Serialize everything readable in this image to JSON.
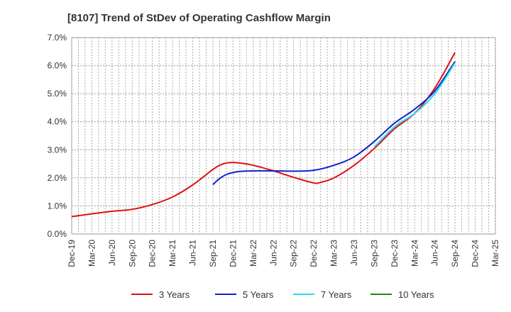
{
  "chart_data": {
    "type": "line",
    "title": "[8107]  Trend of StDev of Operating Cashflow Margin",
    "xlabel": "",
    "ylabel": "",
    "grid": true,
    "legend_position": "bottom",
    "ylim": [
      0,
      7
    ],
    "y_ticks": [
      "0.0%",
      "1.0%",
      "2.0%",
      "3.0%",
      "4.0%",
      "5.0%",
      "6.0%",
      "7.0%"
    ],
    "x_ticks": [
      "Dec-19",
      "Mar-20",
      "Jun-20",
      "Sep-20",
      "Dec-20",
      "Mar-21",
      "Jun-21",
      "Sep-21",
      "Dec-21",
      "Mar-22",
      "Jun-22",
      "Sep-22",
      "Dec-22",
      "Mar-23",
      "Jun-23",
      "Sep-23",
      "Dec-23",
      "Mar-24",
      "Jun-24",
      "Sep-24",
      "Dec-24",
      "Mar-25"
    ],
    "series": [
      {
        "name": "3 Years",
        "color": "#dd1111",
        "x": [
          "Dec-19",
          "Mar-20",
          "Jun-20",
          "Sep-20",
          "Dec-20",
          "Mar-21",
          "Jun-21",
          "Sep-21",
          "Oct-21",
          "Nov-21",
          "Dec-21",
          "Jan-22",
          "Mar-22",
          "Jun-22",
          "Sep-22",
          "Dec-22",
          "Jan-23",
          "Mar-23",
          "Jun-23",
          "Sep-23",
          "Dec-23",
          "Mar-24",
          "Jun-24",
          "Sep-24"
        ],
        "values": [
          0.62,
          0.72,
          0.81,
          0.88,
          1.05,
          1.32,
          1.75,
          2.3,
          2.45,
          2.53,
          2.55,
          2.53,
          2.45,
          2.25,
          2.02,
          1.82,
          1.84,
          2.0,
          2.45,
          3.05,
          3.75,
          4.3,
          5.2,
          6.47
        ]
      },
      {
        "name": "5 Years",
        "color": "#1122cc",
        "x": [
          "Sep-21",
          "Oct-21",
          "Nov-21",
          "Dec-21",
          "Jan-22",
          "Mar-22",
          "Jun-22",
          "Sep-22",
          "Dec-22",
          "Mar-23",
          "Jun-23",
          "Sep-23",
          "Dec-23",
          "Mar-24",
          "Jun-24",
          "Sep-24"
        ],
        "values": [
          1.76,
          1.98,
          2.12,
          2.19,
          2.23,
          2.25,
          2.25,
          2.24,
          2.27,
          2.45,
          2.75,
          3.3,
          3.95,
          4.45,
          5.1,
          6.15
        ]
      },
      {
        "name": "7 Years",
        "color": "#22ddee",
        "x": [
          "Sep-23",
          "Dec-23",
          "Mar-24",
          "Jun-24",
          "Sep-24"
        ],
        "values": [
          3.1,
          3.82,
          4.3,
          5.0,
          6.1
        ]
      },
      {
        "name": "10 Years",
        "color": "#228822",
        "x": [],
        "values": []
      }
    ]
  }
}
